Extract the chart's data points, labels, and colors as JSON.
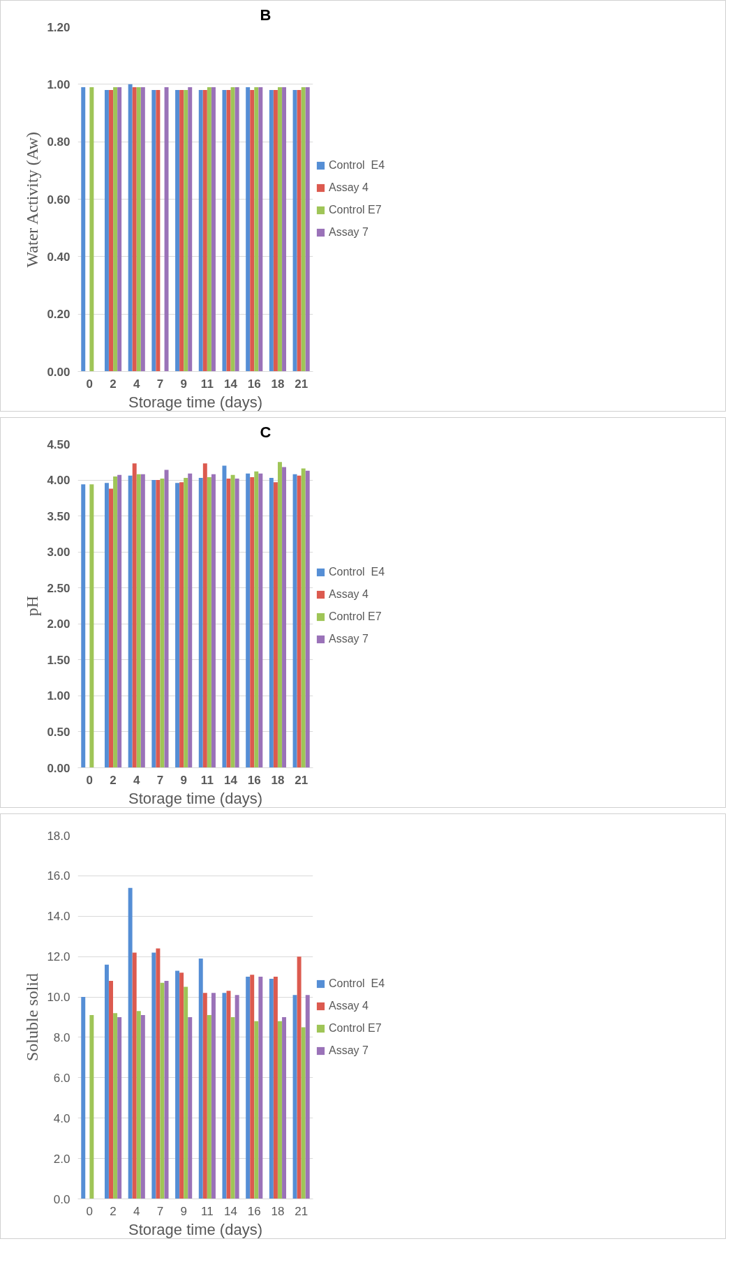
{
  "chart_data": [
    {
      "type": "bar",
      "ylabel": "Water Activity (Aw)",
      "xlabel": "Storage time (days)",
      "annotations": [
        "B"
      ],
      "categories": [
        "0",
        "2",
        "4",
        "7",
        "9",
        "11",
        "14",
        "16",
        "18",
        "21"
      ],
      "series": [
        {
          "name": "Control  E4",
          "color": "#558ed5",
          "values": [
            0.99,
            0.98,
            1.0,
            0.98,
            0.98,
            0.98,
            0.98,
            0.99,
            0.98,
            0.98
          ]
        },
        {
          "name": "Assay 4",
          "color": "#dc5a4f",
          "values": [
            null,
            0.98,
            0.99,
            0.98,
            0.98,
            0.98,
            0.98,
            0.98,
            0.98,
            0.98
          ]
        },
        {
          "name": "Control E7",
          "color": "#9fc557",
          "values": [
            0.99,
            0.99,
            0.99,
            null,
            0.98,
            0.99,
            0.99,
            0.99,
            0.99,
            0.99
          ]
        },
        {
          "name": "Assay 7",
          "color": "#9a72b8",
          "values": [
            null,
            0.99,
            0.99,
            0.99,
            0.99,
            0.99,
            0.99,
            0.99,
            0.99,
            0.99
          ]
        }
      ],
      "ylim": [
        0,
        1.2
      ],
      "yticks": [
        {
          "value": 0,
          "label": "0.00"
        },
        {
          "value": 0.2,
          "label": "0.20"
        },
        {
          "value": 0.4,
          "label": "0.40"
        },
        {
          "value": 0.6,
          "label": "0.60"
        },
        {
          "value": 0.8,
          "label": "0.80"
        },
        {
          "value": 1.0,
          "label": "1.00"
        },
        {
          "value": 1.2,
          "label": "1.20"
        }
      ],
      "grid": "y",
      "legend": "right"
    },
    {
      "type": "bar",
      "ylabel": "pH",
      "xlabel": "Storage time (days)",
      "annotations": [
        "C"
      ],
      "categories": [
        "0",
        "2",
        "4",
        "7",
        "9",
        "11",
        "14",
        "16",
        "18",
        "21"
      ],
      "series": [
        {
          "name": "Control  E4",
          "color": "#558ed5",
          "values": [
            3.94,
            3.96,
            4.06,
            4.0,
            3.96,
            4.03,
            4.2,
            4.09,
            4.03,
            4.08
          ]
        },
        {
          "name": "Assay 4",
          "color": "#dc5a4f",
          "values": [
            null,
            3.88,
            4.23,
            4.0,
            3.97,
            4.23,
            4.02,
            4.04,
            3.97,
            4.06
          ]
        },
        {
          "name": "Control E7",
          "color": "#9fc557",
          "values": [
            3.94,
            4.05,
            4.08,
            4.02,
            4.03,
            4.04,
            4.07,
            4.12,
            4.25,
            4.16
          ]
        },
        {
          "name": "Assay 7",
          "color": "#9a72b8",
          "values": [
            null,
            4.07,
            4.08,
            4.14,
            4.09,
            4.08,
            4.02,
            4.09,
            4.18,
            4.13
          ]
        }
      ],
      "ylim": [
        0,
        4.5
      ],
      "yticks": [
        {
          "value": 0,
          "label": "0.00"
        },
        {
          "value": 0.5,
          "label": "0.50"
        },
        {
          "value": 1.0,
          "label": "1.00"
        },
        {
          "value": 1.5,
          "label": "1.50"
        },
        {
          "value": 2.0,
          "label": "2.00"
        },
        {
          "value": 2.5,
          "label": "2.50"
        },
        {
          "value": 3.0,
          "label": "3.00"
        },
        {
          "value": 3.5,
          "label": "3.50"
        },
        {
          "value": 4.0,
          "label": "4.00"
        },
        {
          "value": 4.5,
          "label": "4.50"
        }
      ],
      "grid": "y",
      "legend": "right"
    },
    {
      "type": "bar",
      "ylabel": "Soluble solid",
      "xlabel": "Storage time (days)",
      "categories": [
        "0",
        "2",
        "4",
        "7",
        "9",
        "11",
        "14",
        "16",
        "18",
        "21"
      ],
      "series": [
        {
          "name": "Control  E4",
          "color": "#558ed5",
          "values": [
            10.0,
            11.6,
            15.4,
            12.2,
            11.3,
            11.9,
            10.2,
            11.0,
            10.9,
            10.1
          ]
        },
        {
          "name": "Assay 4",
          "color": "#dc5a4f",
          "values": [
            null,
            10.8,
            12.2,
            12.4,
            11.2,
            10.2,
            10.3,
            11.1,
            11.0,
            12.0
          ]
        },
        {
          "name": "Control E7",
          "color": "#9fc557",
          "values": [
            9.1,
            9.2,
            9.3,
            10.7,
            10.5,
            9.1,
            9.0,
            8.8,
            8.8,
            8.5
          ]
        },
        {
          "name": "Assay 7",
          "color": "#9a72b8",
          "values": [
            null,
            9.0,
            9.1,
            10.8,
            9.0,
            10.2,
            10.1,
            11.0,
            9.0,
            10.1
          ]
        }
      ],
      "ylim": [
        0,
        18
      ],
      "yticks": [
        {
          "value": 0,
          "label": "0.0"
        },
        {
          "value": 2,
          "label": "2.0"
        },
        {
          "value": 4,
          "label": "4.0"
        },
        {
          "value": 6,
          "label": "6.0"
        },
        {
          "value": 8,
          "label": "8.0"
        },
        {
          "value": 10,
          "label": "10.0"
        },
        {
          "value": 12,
          "label": "12.0"
        },
        {
          "value": 14,
          "label": "14.0"
        },
        {
          "value": 16,
          "label": "16.0"
        },
        {
          "value": 18,
          "label": "18.0"
        }
      ],
      "grid": "y",
      "legend": "right"
    }
  ]
}
